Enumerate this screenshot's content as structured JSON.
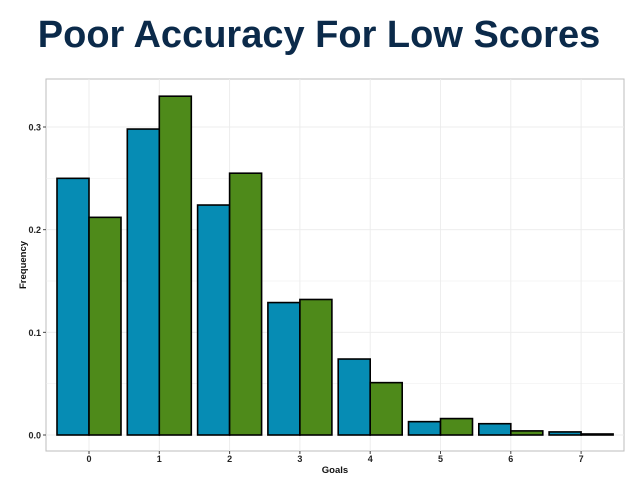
{
  "slide": {
    "title": "Poor Accuracy For Low Scores"
  },
  "chart_data": {
    "type": "bar",
    "title": "",
    "xlabel": "Goals",
    "ylabel": "Frequency",
    "categories": [
      "0",
      "1",
      "2",
      "3",
      "4",
      "5",
      "6",
      "7"
    ],
    "series": [
      {
        "color": "#068cb4",
        "values": [
          0.25,
          0.298,
          0.224,
          0.129,
          0.074,
          0.013,
          0.011,
          0.003
        ]
      },
      {
        "color": "#4e8a1a",
        "values": [
          0.212,
          0.33,
          0.255,
          0.132,
          0.051,
          0.016,
          0.004,
          0.001
        ]
      }
    ],
    "yticks": [
      "0.0",
      "0.1",
      "0.2",
      "0.3"
    ],
    "ylim": [
      0,
      0.345
    ],
    "grid": true,
    "legend": "none"
  }
}
